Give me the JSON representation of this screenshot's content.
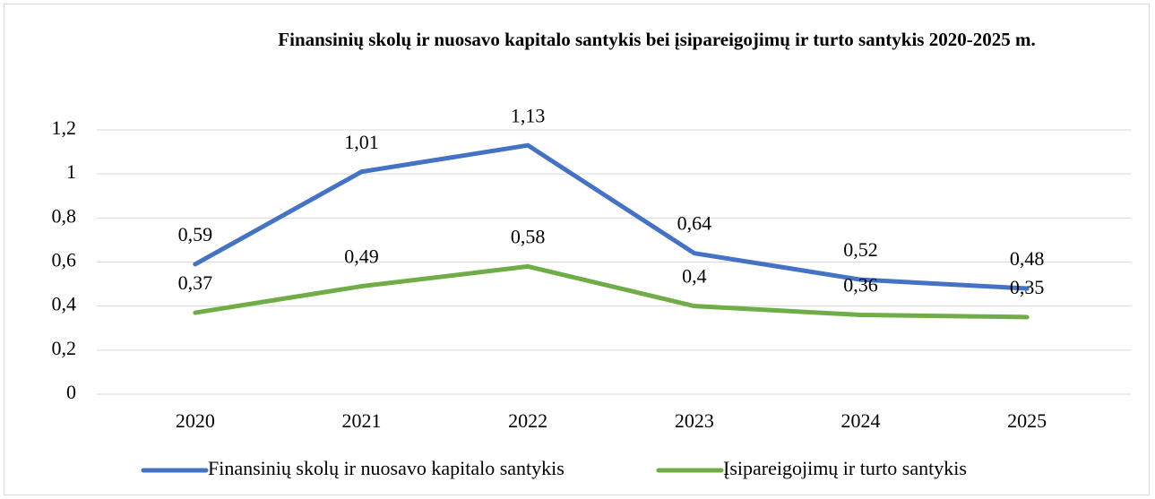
{
  "chart_data": {
    "type": "line",
    "title": "Finansinių skolų ir nuosavo kapitalo santykis bei įsipareigojimų ir turto santykis 2020-2025 m.",
    "categories": [
      "2020",
      "2021",
      "2022",
      "2023",
      "2024",
      "2025"
    ],
    "series": [
      {
        "name": "Finansinių skolų ir nuosavo kapitalo santykis",
        "color": "#4472c4",
        "values": [
          0.59,
          1.01,
          1.13,
          0.64,
          0.52,
          0.48
        ],
        "value_labels": [
          "0,59",
          "1,01",
          "1,13",
          "0,64",
          "0,52",
          "0,48"
        ]
      },
      {
        "name": "Įsipareigojimų ir turto santykis",
        "color": "#70ad47",
        "values": [
          0.37,
          0.49,
          0.58,
          0.4,
          0.36,
          0.35
        ],
        "value_labels": [
          "0,37",
          "0,49",
          "0,58",
          "0,4",
          "0,36",
          "0,35"
        ]
      }
    ],
    "ylim": [
      0,
      1.2
    ],
    "yticks": [
      0,
      {
        "value": 0.2,
        "label": "0,2"
      },
      {
        "value": 0.4,
        "label": "0,4"
      },
      {
        "value": 0.6,
        "label": "0,6"
      },
      {
        "value": 0.8,
        "label": "0,8"
      },
      1,
      {
        "value": 1.2,
        "label": "1,2"
      }
    ],
    "grid": true,
    "legend": "bottom"
  }
}
